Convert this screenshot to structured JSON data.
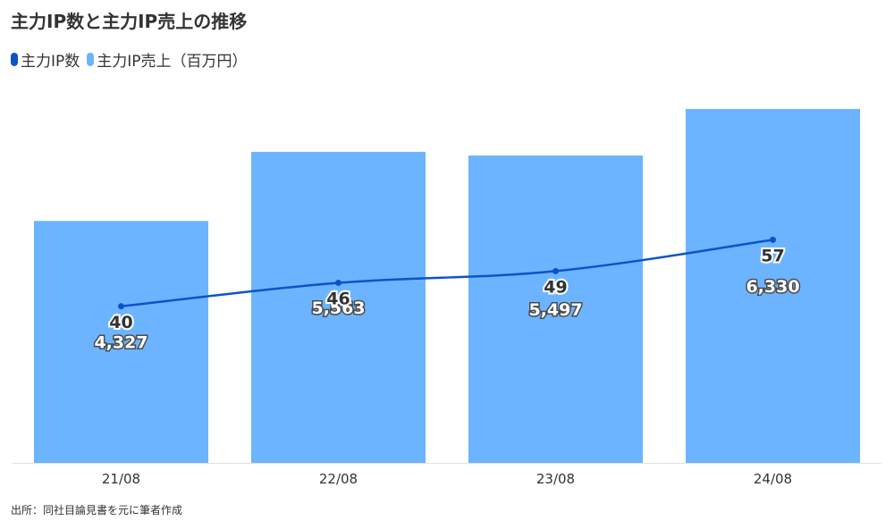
{
  "chart_data": {
    "type": "bar",
    "title": "主力IP数と主力IP売上の推移",
    "categories": [
      "21/08",
      "22/08",
      "23/08",
      "24/08"
    ],
    "series": [
      {
        "name": "主力IP売上（百万円）",
        "type": "bar",
        "values": [
          4327,
          5563,
          5497,
          6330
        ],
        "labels": [
          "4,327",
          "5,563",
          "5,497",
          "6,330"
        ],
        "color": "#6cb4ff"
      },
      {
        "name": "主力IP数",
        "type": "line",
        "values": [
          40,
          46,
          49,
          57
        ],
        "labels": [
          "40",
          "46",
          "49",
          "57"
        ],
        "color": "#0b54c8"
      }
    ],
    "ylim_bar": [
      0,
      7000
    ],
    "ylim_line": [
      0,
      100
    ],
    "grid": false,
    "legend": "top-left"
  },
  "source_note": "出所：同社目論見書を元に筆者作成"
}
